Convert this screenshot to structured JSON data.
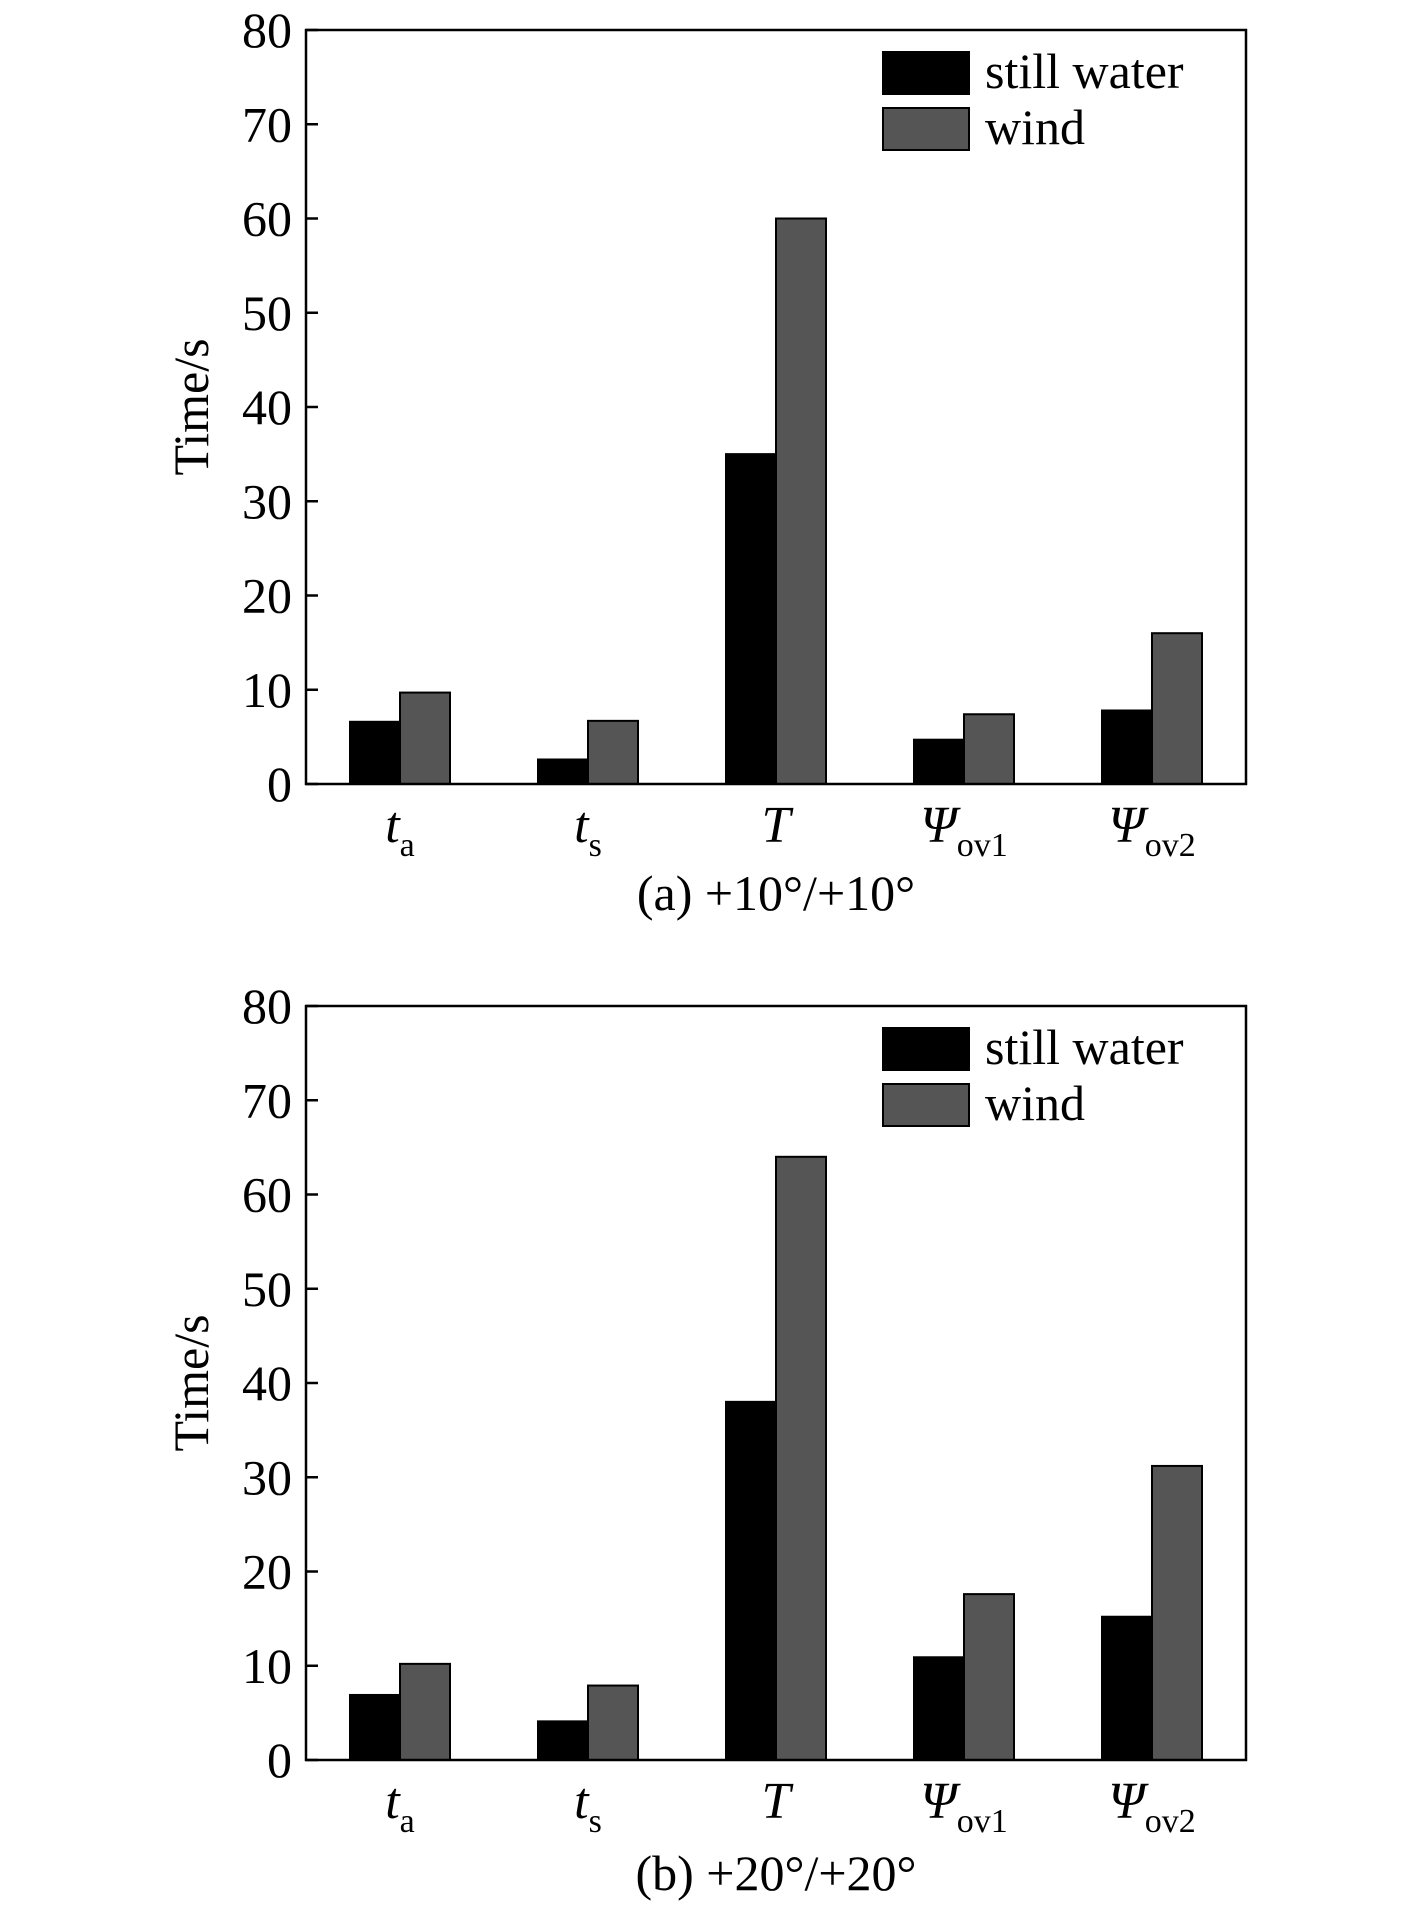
{
  "chart_data": [
    {
      "type": "bar",
      "caption": "(a) +10°/+10°",
      "ylabel": "Time/s",
      "ylim": [
        0,
        80
      ],
      "yticks": [
        0,
        10,
        20,
        30,
        40,
        50,
        60,
        70,
        80
      ],
      "categories": [
        {
          "main": "t",
          "sub": "a"
        },
        {
          "main": "t",
          "sub": "s"
        },
        {
          "main": "T",
          "sub": ""
        },
        {
          "main": "Ψ",
          "sub": "ov1"
        },
        {
          "main": "Ψ",
          "sub": "ov2"
        }
      ],
      "series": [
        {
          "name": "still water",
          "color": "#000000",
          "values": [
            6.6,
            2.6,
            35.0,
            4.7,
            7.8
          ]
        },
        {
          "name": "wind",
          "color": "#555555",
          "values": [
            9.7,
            6.7,
            60.0,
            7.4,
            16.0
          ]
        }
      ],
      "legend_position": "top-right",
      "grid": false
    },
    {
      "type": "bar",
      "caption": "(b) +20°/+20°",
      "ylabel": "Time/s",
      "ylim": [
        0,
        80
      ],
      "yticks": [
        0,
        10,
        20,
        30,
        40,
        50,
        60,
        70,
        80
      ],
      "categories": [
        {
          "main": "t",
          "sub": "a"
        },
        {
          "main": "t",
          "sub": "s"
        },
        {
          "main": "T",
          "sub": ""
        },
        {
          "main": "Ψ",
          "sub": "ov1"
        },
        {
          "main": "Ψ",
          "sub": "ov2"
        }
      ],
      "series": [
        {
          "name": "still water",
          "color": "#000000",
          "values": [
            6.9,
            4.1,
            38.0,
            10.9,
            15.2
          ]
        },
        {
          "name": "wind",
          "color": "#555555",
          "values": [
            10.2,
            7.9,
            64.0,
            17.6,
            31.2
          ]
        }
      ],
      "legend_position": "top-right",
      "grid": false
    }
  ]
}
